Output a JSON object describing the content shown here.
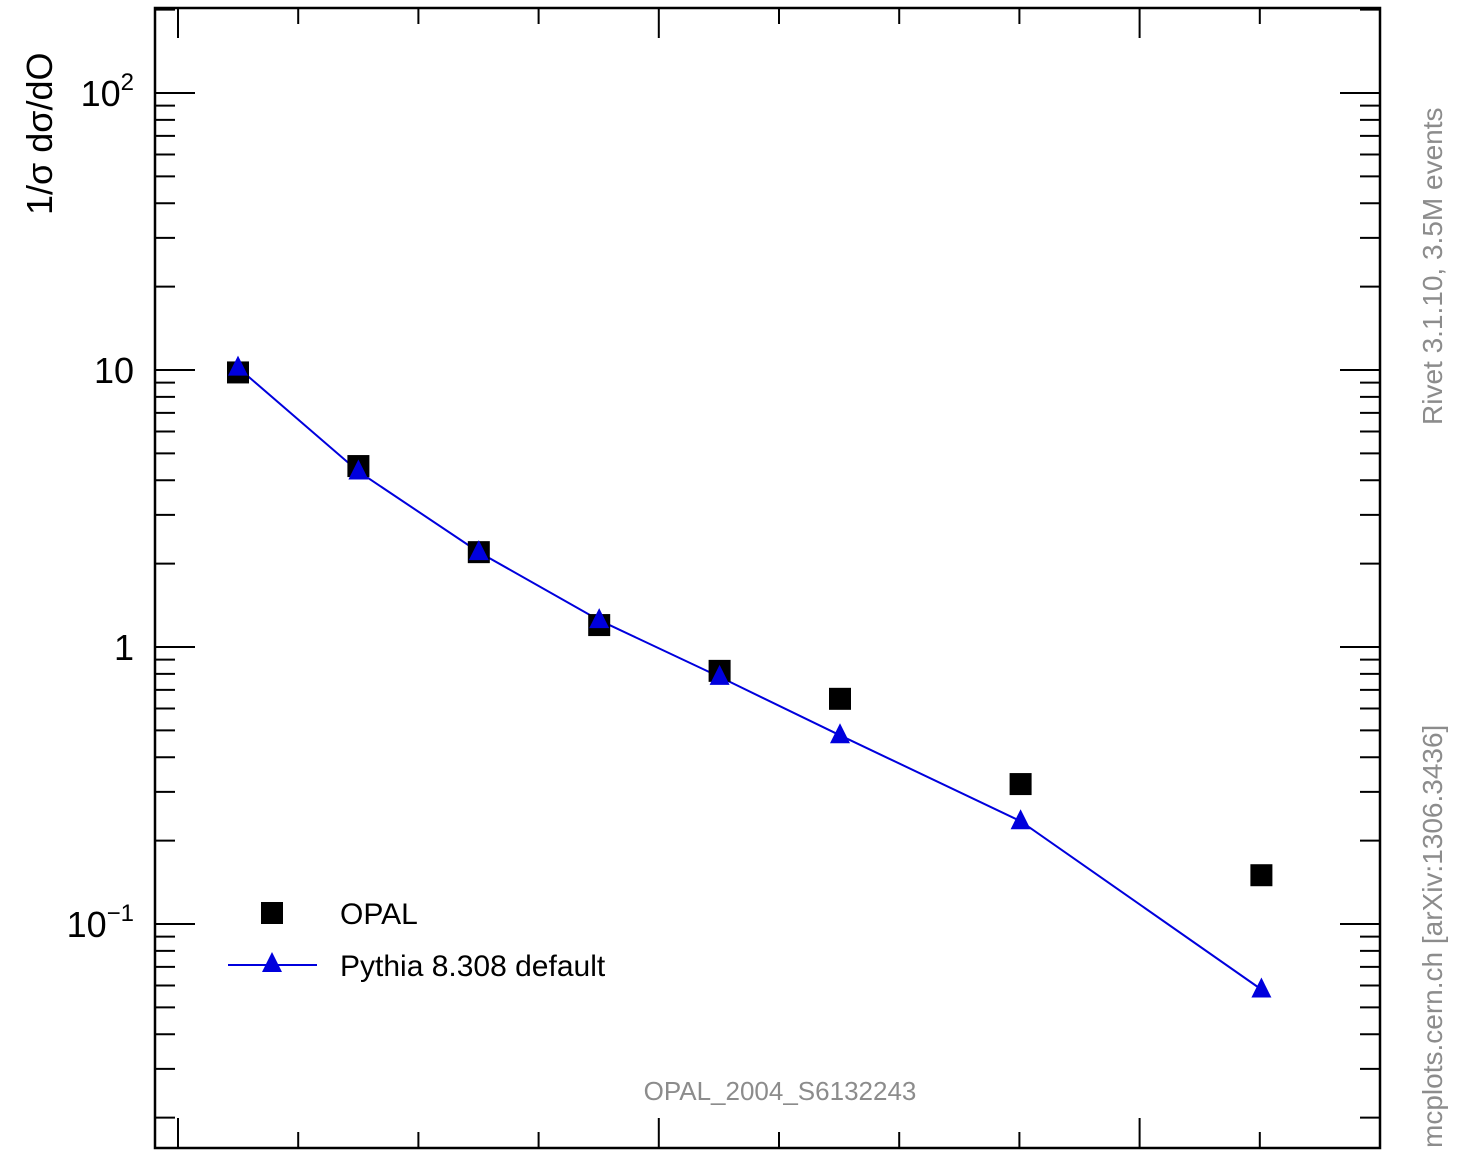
{
  "chart_data": {
    "type": "scatter",
    "ylabel": "1/σ dσ/dO",
    "yscale": "log",
    "ylim": [
      0.02,
      200
    ],
    "x_category_positions": [
      1,
      2,
      3,
      4,
      5,
      6,
      7.5,
      9.5
    ],
    "y_ticks": [
      {
        "value": 0.1,
        "base": "10",
        "exp": "−1"
      },
      {
        "value": 1,
        "base": "1",
        "exp": ""
      },
      {
        "value": 10,
        "base": "10",
        "exp": ""
      },
      {
        "value": 100,
        "base": "10",
        "exp": "2"
      }
    ],
    "series": [
      {
        "name": "OPAL",
        "marker": "square",
        "color": "#000000",
        "values": [
          9.8,
          4.5,
          2.2,
          1.2,
          0.82,
          0.65,
          0.32,
          0.15
        ]
      },
      {
        "name": "Pythia 8.308 default",
        "marker": "triangle",
        "color": "#0000dd",
        "values": [
          10.2,
          4.3,
          2.2,
          1.25,
          0.78,
          0.48,
          0.235,
          0.058
        ]
      }
    ],
    "legend_placement": "bottom-left"
  },
  "side_label_top": "Rivet 3.1.10,  3.5M events",
  "side_label_bottom": "mcplots.cern.ch [arXiv:1306.3436]",
  "analysis_label": "OPAL_2004_S6132243"
}
